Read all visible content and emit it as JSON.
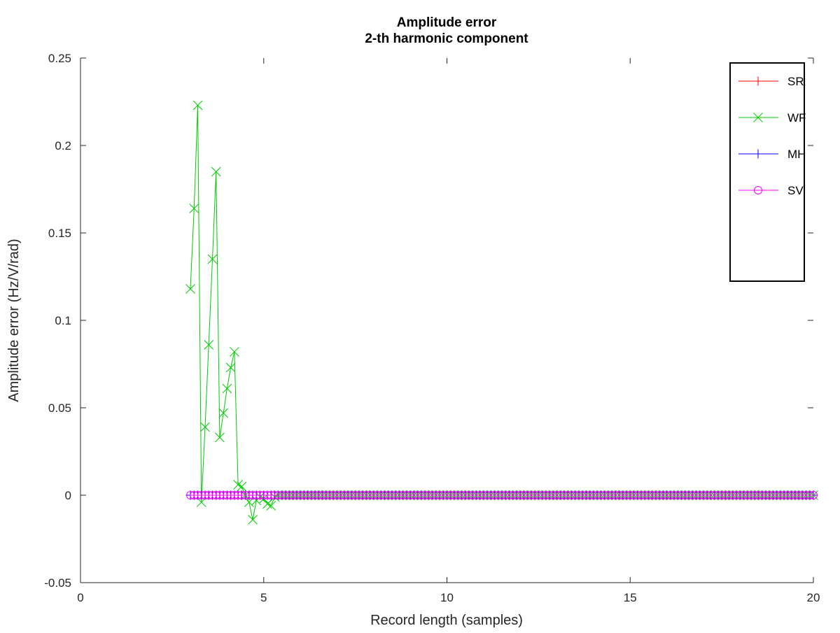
{
  "chart_data": {
    "type": "line",
    "title": "Amplitude error",
    "subtitle": "2-th harmonic component",
    "xlabel": "Record length (samples)",
    "ylabel": "Amplitude error (Hz/V/rad)",
    "xlim": [
      0,
      20
    ],
    "ylim": [
      -0.05,
      0.25
    ],
    "x_ticks": [
      0,
      5,
      10,
      15,
      20
    ],
    "y_ticks": [
      -0.05,
      0,
      0.05,
      0.1,
      0.15,
      0.2,
      0.25
    ],
    "x_tick_labels": [
      "0",
      "5",
      "10",
      "15",
      "20"
    ],
    "y_tick_labels": [
      "-0.05",
      "0",
      "0.05",
      "0.1",
      "0.15",
      "0.2",
      "0.25"
    ],
    "grid": false,
    "legend_position": "top-right",
    "x_start": 3,
    "x_end": 20,
    "x_step": 0.1,
    "series": [
      {
        "name": "SR",
        "color": "#ff0000",
        "marker": "plus",
        "values_note": "zero at every sample",
        "y_constant": 0
      },
      {
        "name": "WF",
        "color": "#00cc00",
        "marker": "cross",
        "x": [
          3.0,
          3.1,
          3.2,
          3.3,
          3.4,
          3.5,
          3.6,
          3.7,
          3.8,
          3.9,
          4.0,
          4.1,
          4.2,
          4.3,
          4.4,
          4.5,
          4.6,
          4.7,
          4.8,
          4.9,
          5.0,
          5.1,
          5.2,
          5.3,
          5.4,
          5.5
        ],
        "y": [
          0.118,
          0.164,
          0.223,
          -0.004,
          0.039,
          0.086,
          0.135,
          0.185,
          0.033,
          0.047,
          0.061,
          0.073,
          0.082,
          0.006,
          0.005,
          0.0,
          -0.004,
          -0.014,
          -0.003,
          -0.001,
          -0.002,
          -0.005,
          -0.006,
          -0.001,
          0.0,
          0.0
        ],
        "y_tail": 0
      },
      {
        "name": "MH",
        "color": "#0000ff",
        "marker": "plus",
        "y_constant": 0
      },
      {
        "name": "SV",
        "color": "#ff00ff",
        "marker": "circle",
        "y_constant": 0
      }
    ]
  }
}
